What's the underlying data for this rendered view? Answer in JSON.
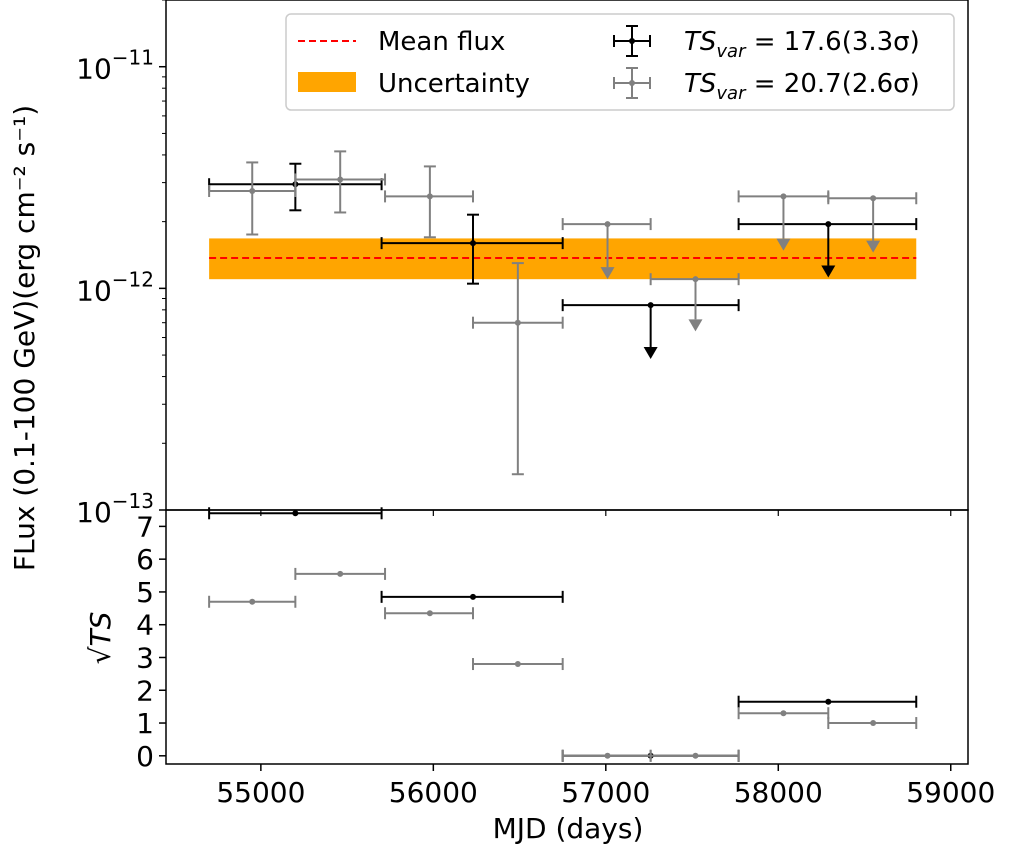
{
  "chart_data": {
    "type": "scatter",
    "x_axis": {
      "label": "MJD (days)",
      "lim": [
        54450,
        59100
      ],
      "ticks": [
        55000,
        56000,
        57000,
        58000,
        59000
      ]
    },
    "top_panel": {
      "ylabel": "FLux (0.1-100 GeV)(erg cm⁻² s⁻¹)",
      "yscale": "log",
      "ylim": [
        1e-13,
        2e-11
      ],
      "ytick_labels": [
        {
          "value": 1e-11,
          "mantissa": "10",
          "exp": "−11"
        },
        {
          "value": 1e-12,
          "mantissa": "10",
          "exp": "−12"
        },
        {
          "value": 1e-13,
          "mantissa": "10",
          "exp": "−13"
        }
      ],
      "mean_flux": 1.37e-12,
      "uncertainty_band": [
        1.1e-12,
        1.68e-12
      ],
      "series": [
        {
          "name": "TS_var = 17.6(3.3σ)",
          "color": "#000000",
          "points": [
            {
              "x": 55200,
              "xlo": 54700,
              "xhi": 55700,
              "y": 2.95e-12,
              "ylo": 2.25e-12,
              "yhi": 3.65e-12,
              "ul": false
            },
            {
              "x": 56230,
              "xlo": 55700,
              "xhi": 56750,
              "y": 1.6e-12,
              "ylo": 1.05e-12,
              "yhi": 2.15e-12,
              "ul": false
            },
            {
              "x": 57260,
              "xlo": 56750,
              "xhi": 57770,
              "y": 8.4e-13,
              "ul": true,
              "arrow_to": 4.8e-13
            },
            {
              "x": 58290,
              "xlo": 57770,
              "xhi": 58800,
              "y": 1.95e-12,
              "ul": true,
              "arrow_to": 1.12e-12
            }
          ]
        },
        {
          "name": "TS_var = 20.7(2.6σ)",
          "color": "#808080",
          "points": [
            {
              "x": 54950,
              "xlo": 54700,
              "xhi": 55200,
              "y": 2.75e-12,
              "ylo": 1.75e-12,
              "yhi": 3.7e-12,
              "ul": false
            },
            {
              "x": 55460,
              "xlo": 55200,
              "xhi": 55720,
              "y": 3.1e-12,
              "ylo": 2.2e-12,
              "yhi": 4.15e-12,
              "ul": false
            },
            {
              "x": 55980,
              "xlo": 55720,
              "xhi": 56230,
              "y": 2.6e-12,
              "ylo": 1.7e-12,
              "yhi": 3.55e-12,
              "ul": false
            },
            {
              "x": 56490,
              "xlo": 56230,
              "xhi": 56750,
              "y": 7e-13,
              "ylo": 1.45e-13,
              "yhi": 1.3e-12,
              "ul": false
            },
            {
              "x": 57010,
              "xlo": 56750,
              "xhi": 57260,
              "y": 1.95e-12,
              "ul": true,
              "arrow_to": 1.1e-12
            },
            {
              "x": 57520,
              "xlo": 57260,
              "xhi": 57770,
              "y": 1.1e-12,
              "ul": true,
              "arrow_to": 6.4e-13
            },
            {
              "x": 58030,
              "xlo": 57770,
              "xhi": 58290,
              "y": 2.6e-12,
              "ul": true,
              "arrow_to": 1.48e-12
            },
            {
              "x": 58550,
              "xlo": 58290,
              "xhi": 58800,
              "y": 2.55e-12,
              "ul": true,
              "arrow_to": 1.45e-12
            }
          ]
        }
      ]
    },
    "bottom_panel": {
      "ylabel": "√TS",
      "ylim": [
        -0.25,
        7.5
      ],
      "yticks": [
        0,
        1,
        2,
        3,
        4,
        5,
        6,
        7
      ],
      "series": [
        {
          "name": "TS_var = 17.6(3.3σ)",
          "color": "#000000",
          "points": [
            {
              "x": 55200,
              "xlo": 54700,
              "xhi": 55700,
              "y": 7.4
            },
            {
              "x": 56230,
              "xlo": 55700,
              "xhi": 56750,
              "y": 4.85
            },
            {
              "x": 57260,
              "xlo": 56750,
              "xhi": 57770,
              "y": 0
            },
            {
              "x": 58290,
              "xlo": 57770,
              "xhi": 58800,
              "y": 1.65
            }
          ]
        },
        {
          "name": "TS_var = 20.7(2.6σ)",
          "color": "#808080",
          "points": [
            {
              "x": 54950,
              "xlo": 54700,
              "xhi": 55200,
              "y": 4.7
            },
            {
              "x": 55460,
              "xlo": 55200,
              "xhi": 55720,
              "y": 5.55
            },
            {
              "x": 55980,
              "xlo": 55720,
              "xhi": 56230,
              "y": 4.35
            },
            {
              "x": 56490,
              "xlo": 56230,
              "xhi": 56750,
              "y": 2.8
            },
            {
              "x": 57010,
              "xlo": 56750,
              "xhi": 57260,
              "y": 0
            },
            {
              "x": 57520,
              "xlo": 57260,
              "xhi": 57770,
              "y": 0
            },
            {
              "x": 58030,
              "xlo": 57770,
              "xhi": 58290,
              "y": 1.3
            },
            {
              "x": 58550,
              "xlo": 58290,
              "xhi": 58800,
              "y": 1.0
            }
          ]
        }
      ]
    },
    "legend": {
      "placement": "top-right",
      "mean_flux_label": "Mean flux",
      "uncertainty_label": "Uncertainty",
      "mean_flux_color": "#ff0000",
      "uncertainty_color": "#ffa500",
      "series1_ts": "TS",
      "series1_sub": "var",
      "series1_rest": " = 17.6(3.3σ)",
      "series2_ts": "TS",
      "series2_sub": "var",
      "series2_rest": " = 20.7(2.6σ)"
    }
  }
}
